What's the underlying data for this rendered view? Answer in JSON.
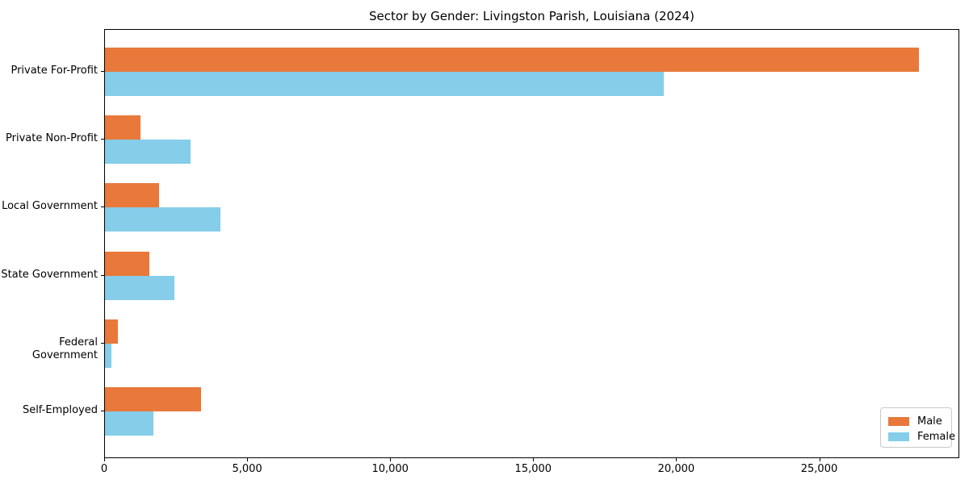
{
  "window": {
    "background": "#ffffff"
  },
  "chart_data": {
    "type": "bar",
    "orientation": "horizontal",
    "title": "Sector by Gender: Livingston Parish, Louisiana (2024)",
    "categories": [
      "Private For-Profit",
      "Private Non-Profit",
      "Local Government",
      "State Government",
      "Federal Government",
      "Self-Employed"
    ],
    "series": [
      {
        "name": "Male",
        "color": "#e8793b",
        "values": [
          28450,
          1230,
          1890,
          1560,
          440,
          3370
        ]
      },
      {
        "name": "Female",
        "color": "#85cde8",
        "values": [
          19530,
          2990,
          4050,
          2440,
          220,
          1690
        ]
      }
    ],
    "xlabel": "",
    "ylabel": "",
    "xlim": [
      0,
      29900
    ],
    "xticks": {
      "values": [
        0,
        5000,
        10000,
        15000,
        20000,
        25000
      ],
      "labels": [
        "0",
        "5,000",
        "10,000",
        "15,000",
        "20,000",
        "25,000"
      ]
    },
    "grid": false,
    "legend": {
      "position": "lower right",
      "entries": [
        "Male",
        "Female"
      ]
    }
  }
}
